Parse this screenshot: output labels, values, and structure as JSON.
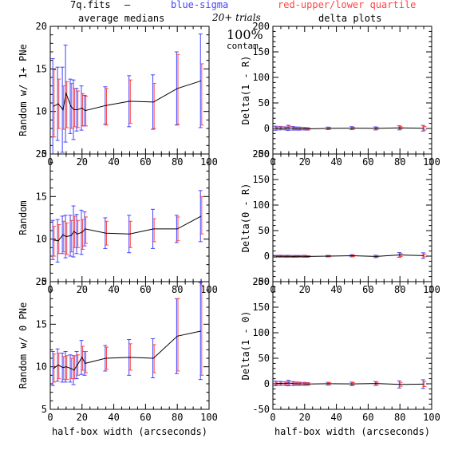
{
  "header": {
    "file_label": "7q.fits",
    "dash_label": "—",
    "blue_label": "blue-sigma",
    "red_label": "red-upper/lower quartile",
    "left_col_title": "average medians",
    "right_col_title": "delta plots",
    "trials_label": "20+ trials",
    "contam_pct": "100%",
    "contam_label": "contam."
  },
  "colors": {
    "line": "#000000",
    "sigma": "#4444ff",
    "quartile": "#ff4444",
    "axis": "#000000",
    "text": "#000000"
  },
  "chart_data": [
    {
      "type": "line",
      "panel": "left-1",
      "ylabel": "Random w/ 1+ PNe",
      "xlabel": "",
      "xlim": [
        0,
        100
      ],
      "ylim": [
        5,
        20
      ],
      "xticks": [
        0,
        20,
        40,
        60,
        80,
        100
      ],
      "yticks": [
        5,
        10,
        15,
        20
      ],
      "x": [
        2,
        5,
        8,
        10,
        13,
        15,
        17,
        20,
        22,
        35,
        50,
        65,
        80,
        95
      ],
      "median": [
        10.6,
        10.9,
        10.2,
        12.1,
        10.6,
        10.2,
        10.2,
        10.4,
        10.1,
        10.7,
        11.2,
        11.1,
        12.7,
        13.6
      ],
      "sigma": [
        5.6,
        4.3,
        5.0,
        5.7,
        3.2,
        3.5,
        2.5,
        2.6,
        1.8,
        2.2,
        3.0,
        3.2,
        4.3,
        5.5
      ],
      "quartile_lo": [
        7.0,
        8.0,
        7.9,
        8.1,
        8.0,
        8.2,
        8.1,
        8.3,
        8.3,
        8.4,
        8.6,
        8.0,
        8.5,
        8.4
      ],
      "quartile_hi": [
        14.9,
        13.8,
        13.0,
        13.5,
        13.3,
        12.7,
        12.4,
        12.1,
        11.8,
        12.7,
        13.7,
        13.3,
        16.7,
        15.6
      ]
    },
    {
      "type": "line",
      "panel": "left-2",
      "ylabel": "Random",
      "xlabel": "",
      "xlim": [
        0,
        100
      ],
      "ylim": [
        5,
        20
      ],
      "xticks": [
        0,
        20,
        40,
        60,
        80,
        100
      ],
      "yticks": [
        5,
        10,
        15,
        20
      ],
      "x": [
        2,
        5,
        8,
        10,
        13,
        15,
        17,
        20,
        22,
        35,
        50,
        65,
        80,
        95
      ],
      "median": [
        9.9,
        9.8,
        10.5,
        10.3,
        10.4,
        10.9,
        10.6,
        10.8,
        11.2,
        10.7,
        10.6,
        11.2,
        11.2,
        12.7
      ],
      "sigma": [
        2.3,
        2.5,
        2.2,
        2.5,
        2.4,
        3.0,
        2.3,
        2.6,
        2.0,
        1.8,
        2.2,
        2.3,
        1.6,
        3.0
      ],
      "quartile_lo": [
        8.0,
        8.3,
        8.5,
        8.2,
        8.5,
        9.0,
        9.0,
        8.8,
        9.5,
        9.3,
        9.0,
        9.7,
        9.8,
        10.6
      ],
      "quartile_hi": [
        11.5,
        11.7,
        12.1,
        11.9,
        12.2,
        12.7,
        12.2,
        12.3,
        12.6,
        12.1,
        12.1,
        12.4,
        12.6,
        15.0
      ]
    },
    {
      "type": "line",
      "panel": "left-3",
      "ylabel": "Random w/ 0 PNe",
      "xlabel": "half-box width (arcseconds)",
      "xlim": [
        0,
        100
      ],
      "ylim": [
        5,
        20
      ],
      "xticks": [
        0,
        20,
        40,
        60,
        80,
        100
      ],
      "yticks": [
        5,
        10,
        15,
        20
      ],
      "x": [
        2,
        5,
        8,
        10,
        13,
        15,
        17,
        20,
        22,
        35,
        50,
        65,
        80,
        95
      ],
      "median": [
        9.8,
        10.2,
        9.9,
        10.0,
        9.8,
        9.6,
        10.2,
        11.1,
        10.4,
        11.0,
        11.1,
        11.0,
        13.6,
        14.2
      ],
      "sigma": [
        2.0,
        1.9,
        1.7,
        1.8,
        1.6,
        1.7,
        1.6,
        2.0,
        1.4,
        1.5,
        2.1,
        2.3,
        4.4,
        5.7
      ],
      "quartile_lo": [
        8.2,
        8.6,
        8.5,
        8.5,
        8.6,
        8.6,
        9.0,
        9.6,
        9.3,
        9.7,
        9.6,
        9.3,
        9.5,
        9.0
      ],
      "quartile_hi": [
        11.5,
        11.6,
        11.2,
        11.3,
        11.0,
        11.3,
        11.4,
        12.4,
        11.8,
        12.3,
        12.7,
        12.6,
        18.0,
        19.6
      ]
    },
    {
      "type": "line",
      "panel": "right-1",
      "ylabel": "Delta(1 - R)",
      "xlabel": "",
      "xlim": [
        0,
        100
      ],
      "ylim": [
        -50,
        200
      ],
      "xticks": [
        0,
        20,
        40,
        60,
        80,
        100
      ],
      "yticks": [
        -50,
        0,
        50,
        100,
        150,
        200
      ],
      "x": [
        2,
        5,
        8,
        10,
        13,
        15,
        17,
        20,
        22,
        35,
        50,
        65,
        80,
        95
      ],
      "median": [
        0.5,
        0.6,
        0.2,
        1.2,
        0.3,
        -0.2,
        -0.3,
        -0.5,
        -0.8,
        0.2,
        0.6,
        0.1,
        1.2,
        0.5
      ],
      "sigma": [
        4.0,
        3.5,
        3.0,
        5.0,
        3.5,
        3.0,
        3.0,
        2.5,
        2.5,
        2.5,
        3.0,
        3.0,
        4.0,
        5.5
      ],
      "quartile_lo": [
        -2.5,
        -2.0,
        -2.2,
        -2.5,
        -2.0,
        -2.5,
        -2.4,
        -2.6,
        -2.8,
        -1.8,
        -1.6,
        -1.9,
        -1.3,
        -3.0
      ],
      "quartile_hi": [
        3.0,
        3.2,
        2.6,
        4.5,
        2.8,
        2.2,
        2.0,
        1.8,
        1.4,
        2.2,
        2.6,
        2.0,
        3.6,
        3.8
      ]
    },
    {
      "type": "line",
      "panel": "right-2",
      "ylabel": "Delta(0 - R)",
      "xlabel": "",
      "xlim": [
        0,
        100
      ],
      "ylim": [
        -50,
        200
      ],
      "xticks": [
        0,
        20,
        40,
        60,
        80,
        100
      ],
      "yticks": [
        -50,
        0,
        50,
        100,
        150,
        200
      ],
      "x": [
        2,
        5,
        8,
        10,
        13,
        15,
        17,
        20,
        22,
        35,
        50,
        65,
        80,
        95
      ],
      "median": [
        -0.4,
        -0.2,
        -0.5,
        -0.3,
        -0.6,
        -0.5,
        -0.4,
        -0.3,
        -0.6,
        0.0,
        0.8,
        -0.6,
        2.4,
        1.0
      ],
      "sigma": [
        2.0,
        2.0,
        1.8,
        2.0,
        1.8,
        1.8,
        1.6,
        2.0,
        1.6,
        1.6,
        2.2,
        2.4,
        4.5,
        5.5
      ],
      "quartile_lo": [
        -1.8,
        -1.8,
        -1.7,
        -1.8,
        -1.6,
        -1.8,
        -1.5,
        -1.5,
        -1.6,
        -1.2,
        -1.0,
        -2.0,
        -0.8,
        -1.5
      ],
      "quartile_hi": [
        1.2,
        1.5,
        1.0,
        1.3,
        0.8,
        1.0,
        1.0,
        1.4,
        0.8,
        1.3,
        2.6,
        1.2,
        5.2,
        4.2
      ]
    },
    {
      "type": "line",
      "panel": "right-3",
      "ylabel": "Delta(1 - 0)",
      "xlabel": "half-box width (arcseconds)",
      "xlim": [
        0,
        100
      ],
      "ylim": [
        -50,
        200
      ],
      "xticks": [
        0,
        20,
        40,
        60,
        80,
        100
      ],
      "yticks": [
        -50,
        0,
        50,
        100,
        150,
        200
      ],
      "x": [
        2,
        5,
        8,
        10,
        13,
        15,
        17,
        20,
        22,
        35,
        50,
        65,
        80,
        95
      ],
      "median": [
        0.6,
        0.8,
        0.4,
        1.5,
        0.5,
        0.2,
        0.0,
        -0.2,
        -0.3,
        0.1,
        -0.2,
        0.6,
        -1.2,
        -0.6
      ],
      "sigma": [
        4.5,
        4.0,
        3.5,
        5.5,
        3.8,
        3.2,
        3.2,
        3.0,
        2.6,
        2.8,
        3.5,
        3.8,
        7.0,
        8.5
      ],
      "quartile_lo": [
        -2.6,
        -2.2,
        -2.3,
        -2.4,
        -2.2,
        -2.5,
        -2.6,
        -2.9,
        -2.8,
        -2.3,
        -2.8,
        -2.4,
        -5.0,
        -5.6
      ],
      "quartile_hi": [
        3.4,
        3.5,
        2.9,
        4.8,
        3.0,
        2.7,
        2.4,
        2.2,
        2.0,
        2.4,
        2.3,
        3.1,
        2.8,
        4.5
      ]
    }
  ]
}
